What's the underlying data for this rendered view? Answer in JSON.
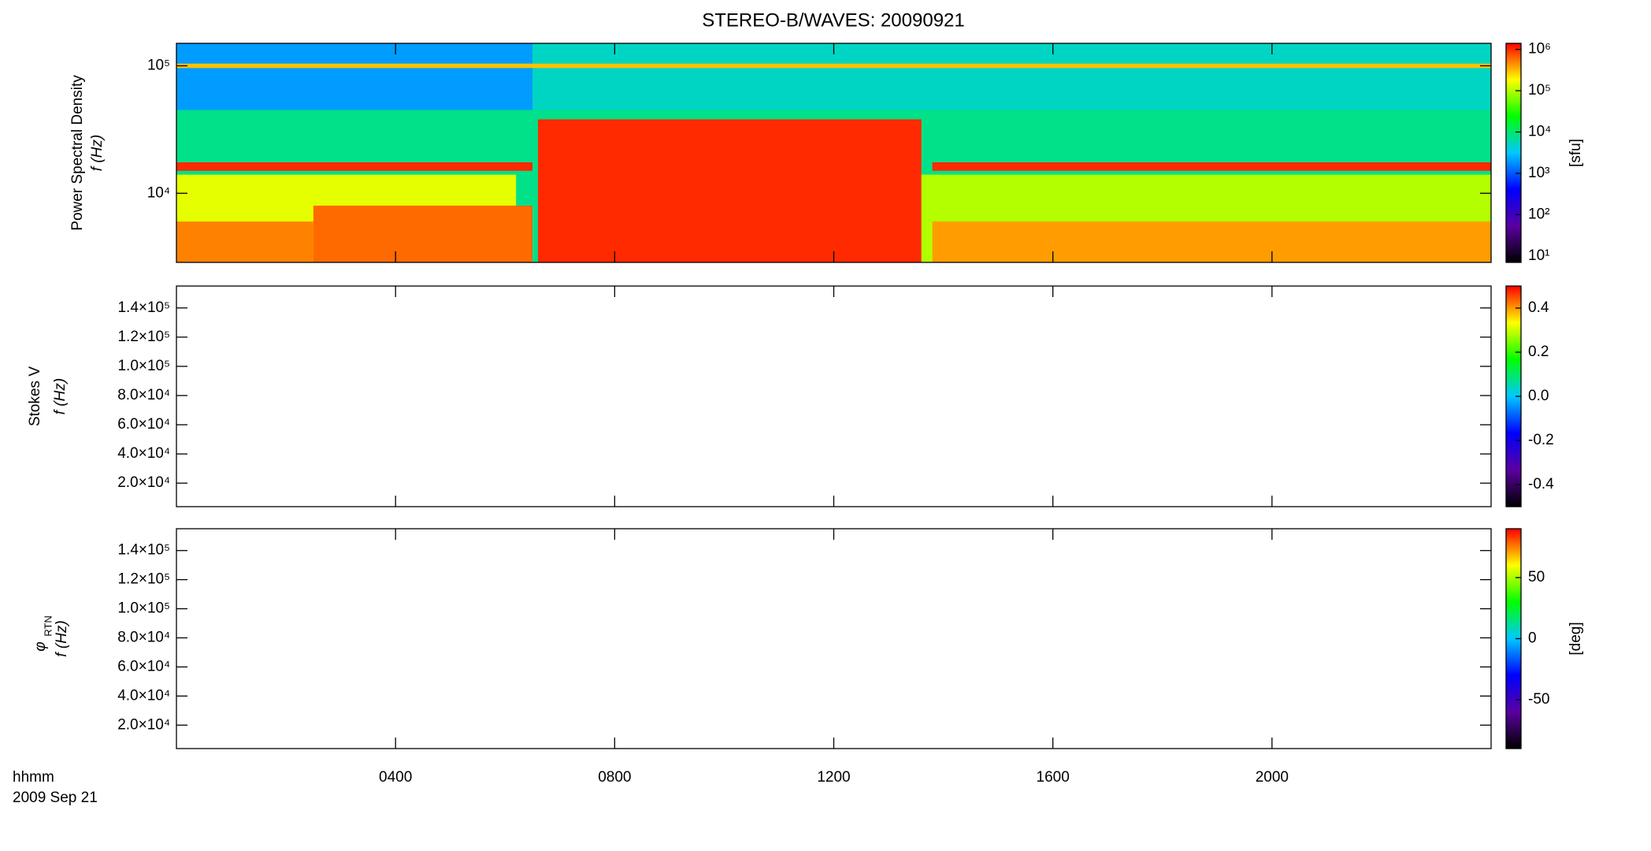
{
  "chart_data": [
    {
      "type": "heatmap",
      "title": "STEREO-B/WAVES: 20090921",
      "ylabel": [
        "Power Spectral Density",
        "f (Hz)"
      ],
      "ylog": true,
      "ylim": [
        2870,
        150000
      ],
      "yticks": [
        {
          "value": 10000,
          "label": "10⁴"
        },
        {
          "value": 100000,
          "label": "10⁵"
        }
      ],
      "zlog": true,
      "zlim": [
        7,
        1400000
      ],
      "zticks": [
        {
          "value": 10,
          "label": "10¹"
        },
        {
          "value": 100,
          "label": "10²"
        },
        {
          "value": 1000,
          "label": "10³"
        },
        {
          "value": 10000,
          "label": "10⁴"
        },
        {
          "value": 100000,
          "label": "10⁵"
        },
        {
          "value": 1000000,
          "label": "10⁶"
        }
      ],
      "zlabel": "[sfu]",
      "colormap": [
        "#000000",
        "#5a00a0",
        "#0000ff",
        "#00c8ff",
        "#00ff00",
        "#ffff00",
        "#ff0000"
      ],
      "regions": [
        {
          "t": [
            0,
            24
          ],
          "f": [
            2870,
            150000
          ],
          "level": 8000
        },
        {
          "t": [
            0,
            6.5
          ],
          "f": [
            45000,
            150000
          ],
          "level": 2000
        },
        {
          "t": [
            6.5,
            24
          ],
          "f": [
            45000,
            150000
          ],
          "level": 5000
        },
        {
          "t": [
            0,
            24
          ],
          "f": [
            96000,
            104000
          ],
          "level": 300000
        },
        {
          "t": [
            0,
            6.5
          ],
          "f": [
            15000,
            17500
          ],
          "level": 1000000
        },
        {
          "t": [
            13.8,
            24
          ],
          "f": [
            15000,
            17500
          ],
          "level": 1000000
        },
        {
          "t": [
            0,
            6.2
          ],
          "f": [
            2870,
            14000
          ],
          "level": 150000
        },
        {
          "t": [
            2.5,
            6.5
          ],
          "f": [
            2870,
            8000
          ],
          "level": 600000
        },
        {
          "t": [
            0,
            2.5
          ],
          "f": [
            2870,
            6000
          ],
          "level": 500000
        },
        {
          "t": [
            6.6,
            13.6
          ],
          "f": [
            2870,
            38000
          ],
          "level": 1000000
        },
        {
          "t": [
            13.6,
            24
          ],
          "f": [
            2870,
            14000
          ],
          "level": 100000
        },
        {
          "t": [
            13.8,
            24
          ],
          "f": [
            2870,
            6000
          ],
          "level": 400000
        }
      ]
    },
    {
      "type": "heatmap",
      "ylabel": [
        "Stokes V",
        "f (Hz)"
      ],
      "ylog": false,
      "ylim": [
        3900,
        155000
      ],
      "yticks": [
        {
          "value": 20000,
          "label": "2.0×10⁴"
        },
        {
          "value": 40000,
          "label": "4.0×10⁴"
        },
        {
          "value": 60000,
          "label": "6.0×10⁴"
        },
        {
          "value": 80000,
          "label": "8.0×10⁴"
        },
        {
          "value": 100000,
          "label": "1.0×10⁵"
        },
        {
          "value": 120000,
          "label": "1.2×10⁵"
        },
        {
          "value": 140000,
          "label": "1.4×10⁵"
        }
      ],
      "zlog": false,
      "zlim": [
        -0.5,
        0.5
      ],
      "zticks": [
        -0.4,
        -0.2,
        {
          "value": 0,
          "label": "0.0"
        },
        0.2,
        0.4
      ],
      "colormap": [
        "#000000",
        "#5a00a0",
        "#0000ff",
        "#00c8ff",
        "#00ff00",
        "#ffff00",
        "#ff0000"
      ],
      "regions": []
    },
    {
      "type": "heatmap",
      "ylabel": [
        "φ",
        "RTN",
        "f (Hz)"
      ],
      "ylog": false,
      "ylim": [
        3900,
        155000
      ],
      "yticks": [
        {
          "value": 20000,
          "label": "2.0×10⁴"
        },
        {
          "value": 40000,
          "label": "4.0×10⁴"
        },
        {
          "value": 60000,
          "label": "6.0×10⁴"
        },
        {
          "value": 80000,
          "label": "8.0×10⁴"
        },
        {
          "value": 100000,
          "label": "1.0×10⁵"
        },
        {
          "value": 120000,
          "label": "1.2×10⁵"
        },
        {
          "value": 140000,
          "label": "1.4×10⁵"
        }
      ],
      "zlog": false,
      "zlim": [
        -90,
        90
      ],
      "zticks": [
        -50,
        0,
        50
      ],
      "zlabel": "[deg]",
      "colormap": [
        "#000000",
        "#5a00a0",
        "#0000ff",
        "#00c8ff",
        "#00ff00",
        "#ffff00",
        "#ff0000"
      ],
      "regions": [],
      "xlabel": [
        "hhmm",
        "2009 Sep 21"
      ],
      "xlim": [
        0,
        24
      ],
      "xticks": [
        {
          "value": 4,
          "label": "0400"
        },
        {
          "value": 8,
          "label": "0800"
        },
        {
          "value": 12,
          "label": "1200"
        },
        {
          "value": 16,
          "label": "1600"
        },
        {
          "value": 20,
          "label": "2000"
        }
      ]
    }
  ]
}
